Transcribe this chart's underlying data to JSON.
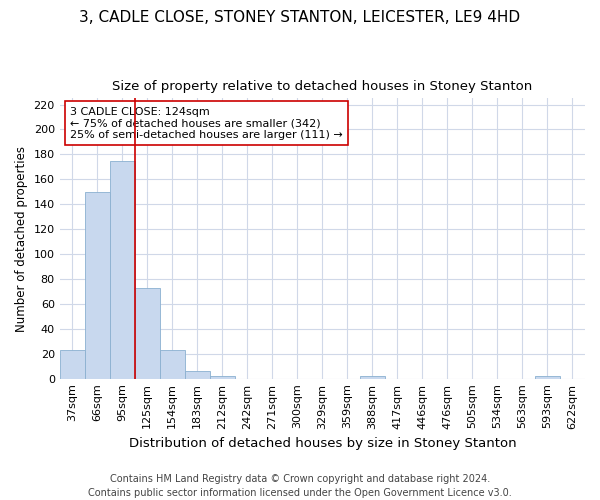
{
  "title": "3, CADLE CLOSE, STONEY STANTON, LEICESTER, LE9 4HD",
  "subtitle": "Size of property relative to detached houses in Stoney Stanton",
  "xlabel": "Distribution of detached houses by size in Stoney Stanton",
  "ylabel": "Number of detached properties",
  "categories": [
    "37sqm",
    "66sqm",
    "95sqm",
    "125sqm",
    "154sqm",
    "183sqm",
    "212sqm",
    "242sqm",
    "271sqm",
    "300sqm",
    "329sqm",
    "359sqm",
    "388sqm",
    "417sqm",
    "446sqm",
    "476sqm",
    "505sqm",
    "534sqm",
    "563sqm",
    "593sqm",
    "622sqm"
  ],
  "values": [
    23,
    150,
    175,
    73,
    23,
    6,
    2,
    0,
    0,
    0,
    0,
    0,
    2,
    0,
    0,
    0,
    0,
    0,
    0,
    2,
    0
  ],
  "bar_color": "#c8d8ee",
  "bar_edge_color": "#8ab0d0",
  "vline_x_index": 3,
  "vline_color": "#cc0000",
  "annotation_text": "3 CADLE CLOSE: 124sqm\n← 75% of detached houses are smaller (342)\n25% of semi-detached houses are larger (111) →",
  "annotation_box_color": "#ffffff",
  "annotation_box_edge_color": "#cc0000",
  "ylim": [
    0,
    225
  ],
  "yticks": [
    0,
    20,
    40,
    60,
    80,
    100,
    120,
    140,
    160,
    180,
    200,
    220
  ],
  "footer": "Contains HM Land Registry data © Crown copyright and database right 2024.\nContains public sector information licensed under the Open Government Licence v3.0.",
  "background_color": "#ffffff",
  "plot_background_color": "#ffffff",
  "grid_color": "#d0d8e8",
  "title_fontsize": 11,
  "subtitle_fontsize": 9.5,
  "xlabel_fontsize": 9.5,
  "ylabel_fontsize": 8.5,
  "tick_fontsize": 8,
  "annotation_fontsize": 8,
  "footer_fontsize": 7
}
